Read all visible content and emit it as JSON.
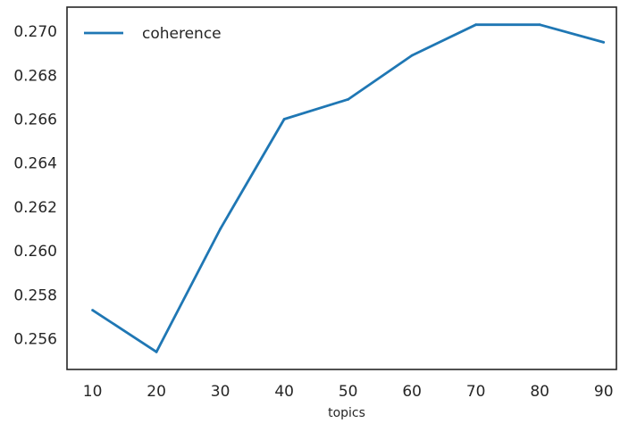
{
  "chart_data": {
    "type": "line",
    "title": "",
    "xlabel": "topics",
    "ylabel": "",
    "x": [
      10,
      20,
      30,
      40,
      50,
      60,
      70,
      80,
      90
    ],
    "series": [
      {
        "name": "coherence",
        "values": [
          0.2573,
          0.2554,
          0.261,
          0.266,
          0.2669,
          0.2689,
          0.2703,
          0.2703,
          0.2695
        ]
      }
    ],
    "xticks": [
      10,
      20,
      30,
      40,
      50,
      60,
      70,
      80,
      90
    ],
    "xtick_labels": [
      "10",
      "20",
      "30",
      "40",
      "50",
      "60",
      "70",
      "80",
      "90"
    ],
    "yticks": [
      0.256,
      0.258,
      0.26,
      0.262,
      0.264,
      0.266,
      0.268,
      0.27
    ],
    "ytick_labels": [
      "0.256",
      "0.258",
      "0.260",
      "0.262",
      "0.264",
      "0.266",
      "0.268",
      "0.270"
    ],
    "xlim": [
      6,
      92
    ],
    "ylim": [
      0.2546,
      0.2711
    ],
    "grid": false,
    "legend_position": "upper-left",
    "colors": {
      "coherence": "#1f77b4",
      "axes": "#262626",
      "background": "#ffffff"
    }
  }
}
